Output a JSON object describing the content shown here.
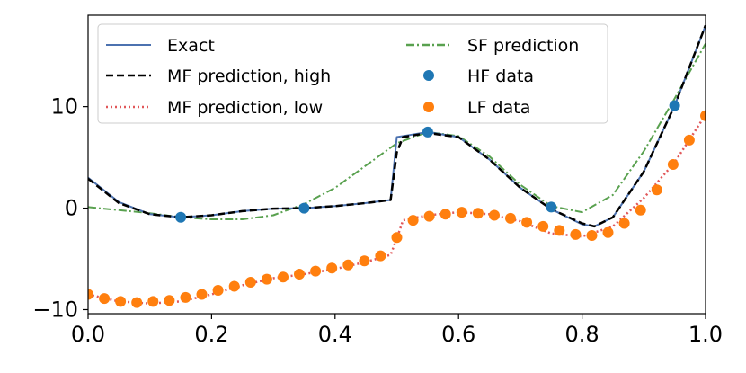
{
  "chart_data": {
    "type": "line",
    "xlim": [
      0.0,
      1.0
    ],
    "ylim": [
      -10.4,
      19.0
    ],
    "xticks": [
      0.0,
      0.2,
      0.4,
      0.6,
      0.8,
      1.0
    ],
    "xtick_labels": [
      "0.0",
      "0.2",
      "0.4",
      "0.6",
      "0.8",
      "1.0"
    ],
    "yticks": [
      -10,
      0,
      10
    ],
    "ytick_labels": [
      "−10",
      "0",
      "10"
    ],
    "legend_position": "top-left",
    "series": [
      {
        "name": "Exact",
        "style": "solid",
        "color": "#4c72b0",
        "x": [
          0.0,
          0.05,
          0.1,
          0.15,
          0.2,
          0.25,
          0.3,
          0.35,
          0.4,
          0.45,
          0.49,
          0.5,
          0.52,
          0.55,
          0.6,
          0.65,
          0.7,
          0.75,
          0.8,
          0.82,
          0.85,
          0.9,
          0.95,
          1.0
        ],
        "y": [
          3.0,
          0.6,
          -0.6,
          -0.9,
          -0.7,
          -0.3,
          -0.05,
          0.0,
          0.2,
          0.5,
          0.8,
          7.0,
          7.2,
          7.5,
          7.0,
          4.8,
          2.0,
          -0.1,
          -1.6,
          -1.8,
          -0.9,
          3.6,
          10.1,
          18.0
        ]
      },
      {
        "name": "MF prediction, high",
        "style": "dashed",
        "color": "#000000",
        "x": [
          0.0,
          0.05,
          0.1,
          0.15,
          0.2,
          0.25,
          0.3,
          0.35,
          0.4,
          0.45,
          0.49,
          0.5,
          0.51,
          0.55,
          0.6,
          0.65,
          0.7,
          0.75,
          0.8,
          0.82,
          0.85,
          0.9,
          0.95,
          1.0
        ],
        "y": [
          2.9,
          0.5,
          -0.6,
          -0.9,
          -0.7,
          -0.3,
          -0.05,
          0.0,
          0.2,
          0.5,
          0.8,
          5.5,
          7.0,
          7.4,
          7.0,
          4.8,
          2.0,
          -0.1,
          -1.5,
          -1.8,
          -0.9,
          3.6,
          10.1,
          18.0
        ]
      },
      {
        "name": "MF prediction, low",
        "style": "dotted",
        "color": "#e15759",
        "x": [
          0.0,
          0.05,
          0.1,
          0.15,
          0.2,
          0.25,
          0.3,
          0.35,
          0.4,
          0.45,
          0.49,
          0.5,
          0.51,
          0.55,
          0.6,
          0.65,
          0.7,
          0.75,
          0.8,
          0.85,
          0.9,
          0.95,
          1.0
        ],
        "y": [
          -8.5,
          -9.2,
          -9.4,
          -9.2,
          -8.5,
          -7.6,
          -6.9,
          -6.5,
          -6.0,
          -5.3,
          -4.6,
          -3.0,
          -1.2,
          -0.7,
          -0.4,
          -0.6,
          -1.3,
          -2.5,
          -2.8,
          -1.8,
          1.0,
          4.5,
          9.2
        ]
      },
      {
        "name": "SF prediction",
        "style": "dashdot",
        "color": "#59a14f",
        "x": [
          0.0,
          0.05,
          0.1,
          0.15,
          0.2,
          0.25,
          0.3,
          0.35,
          0.4,
          0.45,
          0.5,
          0.55,
          0.6,
          0.65,
          0.7,
          0.75,
          0.8,
          0.85,
          0.9,
          0.95,
          1.0
        ],
        "y": [
          0.1,
          -0.2,
          -0.5,
          -0.9,
          -1.1,
          -1.1,
          -0.7,
          0.4,
          2.0,
          4.2,
          6.4,
          7.5,
          7.1,
          5.1,
          2.3,
          0.2,
          -0.4,
          1.3,
          5.6,
          10.8,
          16.2
        ]
      }
    ],
    "scatter": [
      {
        "name": "HF data",
        "color": "#1f77b4",
        "x": [
          0.15,
          0.35,
          0.55,
          0.75,
          0.95
        ],
        "y": [
          -0.9,
          0.0,
          7.5,
          0.1,
          10.1
        ]
      },
      {
        "name": "LF data",
        "color": "#ff7f0e",
        "x": [
          0.0,
          0.0263,
          0.0526,
          0.0789,
          0.1053,
          0.1316,
          0.1579,
          0.1842,
          0.2105,
          0.2368,
          0.2632,
          0.2895,
          0.3158,
          0.3421,
          0.3684,
          0.3947,
          0.4211,
          0.4474,
          0.4737,
          0.5,
          0.5263,
          0.5526,
          0.5789,
          0.6053,
          0.6316,
          0.6579,
          0.6842,
          0.7105,
          0.7368,
          0.7632,
          0.7895,
          0.8158,
          0.8421,
          0.8684,
          0.8947,
          0.9211,
          0.9474,
          0.9737,
          1.0
        ],
        "y": [
          -8.5,
          -8.9,
          -9.2,
          -9.3,
          -9.2,
          -9.1,
          -8.8,
          -8.5,
          -8.1,
          -7.7,
          -7.3,
          -7.0,
          -6.8,
          -6.5,
          -6.2,
          -5.9,
          -5.6,
          -5.2,
          -4.7,
          -2.9,
          -1.2,
          -0.8,
          -0.6,
          -0.4,
          -0.5,
          -0.7,
          -1.0,
          -1.4,
          -1.8,
          -2.2,
          -2.6,
          -2.7,
          -2.4,
          -1.5,
          -0.2,
          1.8,
          4.3,
          6.7,
          9.1
        ]
      }
    ],
    "legend": {
      "left_column": [
        "Exact",
        "MF prediction, high",
        "MF prediction, low"
      ],
      "right_column": [
        "SF prediction",
        "HF data",
        "LF data"
      ]
    }
  }
}
